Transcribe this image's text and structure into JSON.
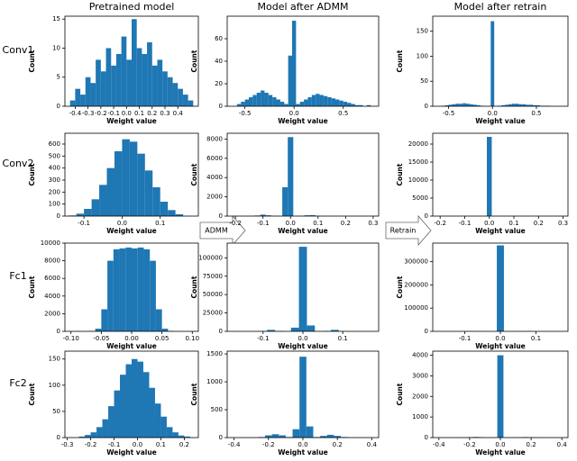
{
  "column_titles": [
    "Pretrained model",
    "Model after ADMM",
    "Model after retrain"
  ],
  "row_labels": [
    "Conv1",
    "Conv2",
    "Fc1",
    "Fc2"
  ],
  "arrows": [
    "ADMM",
    "Retrain"
  ],
  "chart_data": [
    {
      "type": "histogram",
      "xlabel": "Weight value",
      "ylabel": "Count",
      "color": "#1f77b4",
      "bins": [
        -0.44,
        -0.4,
        -0.36,
        -0.32,
        -0.28,
        -0.24,
        -0.2,
        -0.16,
        -0.12,
        -0.08,
        -0.04,
        0,
        0.04,
        0.08,
        0.12,
        0.16,
        0.2,
        0.24,
        0.28,
        0.32,
        0.36,
        0.4,
        0.44,
        0.48,
        0.52
      ],
      "counts": [
        1,
        3,
        2,
        5,
        4,
        8,
        6,
        10,
        7,
        9,
        12,
        8,
        15,
        10,
        9,
        11,
        7,
        8,
        6,
        5,
        4,
        3,
        2,
        1
      ],
      "xlim": [
        -0.48,
        0.56
      ],
      "xticks": [
        -0.4,
        -0.3,
        -0.2,
        -0.1,
        {
          "value": 0,
          "label": "0.0"
        },
        0.1,
        0.2,
        0.3,
        0.4
      ],
      "ylim": [
        0,
        15.5
      ],
      "yticks": [
        0,
        5,
        10,
        15
      ]
    },
    {
      "type": "histogram",
      "xlabel": "Weight value",
      "ylabel": "Count",
      "color": "#1f77b4",
      "bins": [
        -0.62,
        -0.58,
        -0.54,
        -0.5,
        -0.46,
        -0.42,
        -0.38,
        -0.34,
        -0.3,
        -0.26,
        -0.22,
        -0.18,
        -0.14,
        -0.1,
        -0.06,
        -0.02,
        0.02,
        0.06,
        0.1,
        0.14,
        0.18,
        0.22,
        0.26,
        0.3,
        0.34,
        0.38,
        0.42,
        0.46,
        0.5,
        0.54,
        0.58,
        0.62,
        0.66,
        0.7,
        0.74,
        0.78
      ],
      "counts": [
        0,
        2,
        4,
        6,
        8,
        10,
        12,
        14,
        12,
        10,
        8,
        6,
        4,
        2,
        45,
        76,
        2,
        4,
        6,
        8,
        10,
        11,
        10,
        9,
        8,
        7,
        6,
        5,
        4,
        3,
        2,
        1,
        1,
        0,
        1
      ],
      "xlim": [
        -0.68,
        0.86
      ],
      "xticks": [
        -0.5,
        {
          "value": 0,
          "label": "0.0"
        },
        0.5
      ],
      "ylim": [
        0,
        80
      ],
      "yticks": [
        0,
        20,
        40,
        60
      ]
    },
    {
      "type": "histogram",
      "xlabel": "Weight value",
      "ylabel": "Count",
      "color": "#1f77b4",
      "bins": [
        -0.62,
        -0.58,
        -0.54,
        -0.5,
        -0.46,
        -0.42,
        -0.38,
        -0.34,
        -0.3,
        -0.26,
        -0.22,
        -0.18,
        -0.14,
        -0.1,
        -0.06,
        -0.02,
        0.02,
        0.06,
        0.1,
        0.14,
        0.18,
        0.22,
        0.26,
        0.3,
        0.34,
        0.38,
        0.42,
        0.46,
        0.5,
        0.54,
        0.58,
        0.62,
        0.66,
        0.7,
        0.74,
        0.78
      ],
      "counts": [
        0,
        1,
        2,
        3,
        4,
        5,
        5,
        6,
        5,
        4,
        3,
        2,
        1,
        0,
        0,
        170,
        0,
        1,
        2,
        3,
        4,
        5,
        5,
        4,
        4,
        3,
        3,
        2,
        2,
        1,
        1,
        1,
        0,
        0,
        0
      ],
      "xlim": [
        -0.68,
        0.86
      ],
      "xticks": [
        -0.5,
        {
          "value": 0,
          "label": "0.0"
        },
        0.5
      ],
      "ylim": [
        0,
        180
      ],
      "yticks": [
        0,
        50,
        100,
        150
      ]
    },
    {
      "type": "histogram",
      "xlabel": "Weight value",
      "ylabel": "Count",
      "color": "#1f77b4",
      "bins": [
        -0.14,
        -0.12,
        -0.1,
        -0.08,
        -0.06,
        -0.04,
        -0.02,
        0,
        0.02,
        0.04,
        0.06,
        0.08,
        0.1,
        0.12,
        0.14,
        0.16
      ],
      "counts": [
        5,
        20,
        60,
        140,
        260,
        400,
        540,
        640,
        620,
        520,
        380,
        240,
        120,
        50,
        15
      ],
      "xlim": [
        -0.15,
        0.2
      ],
      "xticks": [
        -0.1,
        {
          "value": 0,
          "label": "0.0"
        },
        0.1
      ],
      "ylim": [
        0,
        690
      ],
      "yticks": [
        0,
        100,
        200,
        300,
        400,
        500,
        600
      ]
    },
    {
      "type": "histogram",
      "xlabel": "Weight value",
      "ylabel": "Count",
      "color": "#1f77b4",
      "bins": [
        -0.21,
        -0.19,
        -0.17,
        -0.15,
        -0.13,
        -0.11,
        -0.09,
        -0.07,
        -0.05,
        -0.03,
        -0.01,
        0.01,
        0.03,
        0.05,
        0.07,
        0.09,
        0.11,
        0.13,
        0.15,
        0.17,
        0.19,
        0.21,
        0.23,
        0.25,
        0.27,
        0.29
      ],
      "counts": [
        0,
        0,
        0,
        20,
        60,
        150,
        80,
        20,
        10,
        3000,
        8200,
        10,
        20,
        80,
        100,
        30,
        0,
        0,
        0,
        0,
        0,
        0,
        0,
        0,
        0
      ],
      "xlim": [
        -0.23,
        0.32
      ],
      "xticks": [
        -0.2,
        -0.1,
        {
          "value": 0,
          "label": "0.0"
        },
        0.1,
        0.2,
        0.3
      ],
      "ylim": [
        0,
        8600
      ],
      "yticks": [
        0,
        2000,
        4000,
        6000,
        8000
      ]
    },
    {
      "type": "histogram",
      "xlabel": "Weight value",
      "ylabel": "Count",
      "color": "#1f77b4",
      "bins": [
        -0.21,
        -0.19,
        -0.17,
        -0.15,
        -0.13,
        -0.11,
        -0.09,
        -0.07,
        -0.05,
        -0.03,
        -0.01,
        0.01,
        0.03,
        0.05,
        0.07,
        0.09,
        0.11,
        0.13,
        0.15,
        0.17,
        0.19,
        0.21,
        0.23,
        0.25,
        0.27,
        0.29
      ],
      "counts": [
        0,
        0,
        0,
        0,
        5,
        10,
        5,
        0,
        0,
        0,
        22000,
        0,
        0,
        5,
        8,
        3,
        0,
        0,
        0,
        0,
        0,
        0,
        0,
        0,
        0
      ],
      "xlim": [
        -0.23,
        0.32
      ],
      "xticks": [
        -0.2,
        -0.1,
        {
          "value": 0,
          "label": "0.0"
        },
        0.1,
        0.2,
        0.3
      ],
      "ylim": [
        0,
        23000
      ],
      "yticks": [
        0,
        5000,
        10000,
        15000,
        20000
      ]
    },
    {
      "type": "histogram",
      "xlabel": "Weight value",
      "ylabel": "Count",
      "color": "#1f77b4",
      "bins": [
        -0.07,
        -0.06,
        -0.05,
        -0.04,
        -0.03,
        -0.02,
        -0.01,
        0,
        0.01,
        0.02,
        0.03,
        0.04,
        0.05,
        0.06,
        0.07
      ],
      "counts": [
        50,
        300,
        2500,
        8000,
        9300,
        9400,
        9500,
        9400,
        9500,
        9300,
        8000,
        2500,
        300,
        50
      ],
      "xlim": [
        -0.11,
        0.11
      ],
      "xticks": [
        {
          "value": -0.1,
          "label": "-0.10"
        },
        -0.05,
        {
          "value": 0,
          "label": "0.00"
        },
        0.05,
        {
          "value": 0.1,
          "label": "0.10"
        }
      ],
      "ylim": [
        0,
        10000
      ],
      "yticks": [
        0,
        2000,
        4000,
        6000,
        8000,
        10000
      ]
    },
    {
      "type": "histogram",
      "xlabel": "Weight value",
      "ylabel": "Count",
      "color": "#1f77b4",
      "bins": [
        -0.17,
        -0.15,
        -0.13,
        -0.11,
        -0.09,
        -0.07,
        -0.05,
        -0.03,
        -0.01,
        0.01,
        0.03,
        0.05,
        0.07,
        0.09,
        0.11,
        0.13,
        0.15,
        0.17
      ],
      "counts": [
        0,
        0,
        0,
        200,
        2000,
        500,
        100,
        5000,
        115000,
        8000,
        100,
        500,
        2000,
        200,
        0,
        0,
        0
      ],
      "xlim": [
        -0.19,
        0.19
      ],
      "xticks": [
        -0.1,
        {
          "value": 0,
          "label": "0.0"
        },
        0.1
      ],
      "ylim": [
        0,
        120000
      ],
      "yticks": [
        0,
        25000,
        50000,
        75000,
        100000
      ]
    },
    {
      "type": "histogram",
      "xlabel": "Weight value",
      "ylabel": "Count",
      "color": "#1f77b4",
      "bins": [
        -0.17,
        -0.15,
        -0.13,
        -0.11,
        -0.09,
        -0.07,
        -0.05,
        -0.03,
        -0.01,
        0.01,
        0.03,
        0.05,
        0.07,
        0.09,
        0.11,
        0.13,
        0.15,
        0.17
      ],
      "counts": [
        0,
        0,
        0,
        50,
        800,
        200,
        0,
        0,
        370000,
        0,
        0,
        200,
        800,
        50,
        0,
        0,
        0
      ],
      "xlim": [
        -0.19,
        0.19
      ],
      "xticks": [
        -0.1,
        {
          "value": 0,
          "label": "0.0"
        },
        0.1
      ],
      "ylim": [
        0,
        380000
      ],
      "yticks": [
        0,
        100000,
        200000,
        300000
      ]
    },
    {
      "type": "histogram",
      "xlabel": "Weight value",
      "ylabel": "Count",
      "color": "#1f77b4",
      "bins": [
        -0.25,
        -0.225,
        -0.2,
        -0.175,
        -0.15,
        -0.125,
        -0.1,
        -0.075,
        -0.05,
        -0.025,
        0,
        0.025,
        0.05,
        0.075,
        0.1,
        0.125,
        0.15,
        0.175,
        0.2,
        0.225
      ],
      "counts": [
        2,
        5,
        10,
        20,
        35,
        60,
        90,
        120,
        140,
        150,
        145,
        125,
        95,
        65,
        40,
        20,
        10,
        4,
        2
      ],
      "xlim": [
        -0.31,
        0.26
      ],
      "xticks": [
        -0.3,
        -0.2,
        -0.1,
        {
          "value": 0,
          "label": "0.0"
        },
        0.1,
        0.2
      ],
      "ylim": [
        0,
        165
      ],
      "yticks": [
        0,
        50,
        100,
        150
      ]
    },
    {
      "type": "histogram",
      "xlabel": "Weight value",
      "ylabel": "Count",
      "color": "#1f77b4",
      "bins": [
        -0.38,
        -0.34,
        -0.3,
        -0.26,
        -0.22,
        -0.18,
        -0.14,
        -0.1,
        -0.06,
        -0.02,
        0.02,
        0.06,
        0.1,
        0.14,
        0.18,
        0.22,
        0.26,
        0.3,
        0.34,
        0.38
      ],
      "counts": [
        0,
        0,
        0,
        10,
        40,
        60,
        40,
        10,
        150,
        1450,
        200,
        10,
        30,
        50,
        30,
        10,
        0,
        0,
        0
      ],
      "xlim": [
        -0.44,
        0.44
      ],
      "xticks": [
        -0.4,
        -0.2,
        {
          "value": 0,
          "label": "0.0"
        },
        0.2,
        0.4
      ],
      "ylim": [
        0,
        1550
      ],
      "yticks": [
        0,
        500,
        1000,
        1500
      ]
    },
    {
      "type": "histogram",
      "xlabel": "Weight value",
      "ylabel": "Count",
      "color": "#1f77b4",
      "bins": [
        -0.38,
        -0.34,
        -0.3,
        -0.26,
        -0.22,
        -0.18,
        -0.14,
        -0.1,
        -0.06,
        -0.02,
        0.02,
        0.06,
        0.1,
        0.14,
        0.18,
        0.22,
        0.26,
        0.3,
        0.34,
        0.38
      ],
      "counts": [
        0,
        0,
        0,
        5,
        20,
        30,
        20,
        5,
        0,
        4000,
        0,
        5,
        15,
        25,
        15,
        5,
        0,
        0,
        0
      ],
      "xlim": [
        -0.44,
        0.44
      ],
      "xticks": [
        -0.4,
        -0.2,
        {
          "value": 0,
          "label": "0.0"
        },
        0.2,
        0.4
      ],
      "ylim": [
        0,
        4200
      ],
      "yticks": [
        0,
        1000,
        2000,
        3000,
        4000
      ]
    }
  ]
}
